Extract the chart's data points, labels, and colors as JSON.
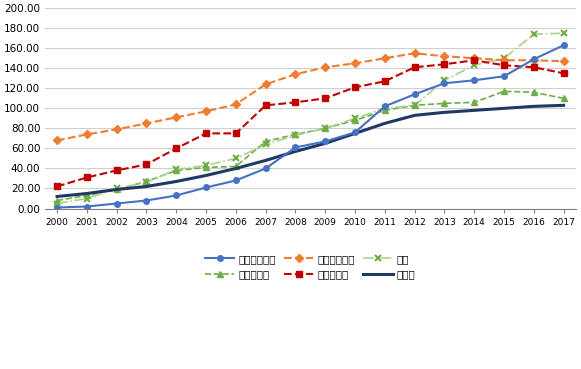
{
  "years": [
    2000,
    2001,
    2002,
    2003,
    2004,
    2005,
    2006,
    2007,
    2008,
    2009,
    2010,
    2011,
    2012,
    2013,
    2014,
    2015,
    2016,
    2017
  ],
  "indonesia": [
    1.0,
    2.0,
    5.0,
    8.0,
    13.0,
    21.0,
    28.0,
    40.0,
    61.0,
    67.0,
    76.0,
    102.0,
    114.0,
    125.0,
    128.0,
    132.0,
    149.0,
    163.0
  ],
  "malaysia": [
    22.0,
    31.0,
    38.0,
    44.0,
    60.0,
    75.0,
    75.0,
    103.0,
    106.0,
    110.0,
    121.0,
    127.0,
    141.0,
    144.0,
    148.0,
    143.0,
    141.0,
    135.0
  ],
  "philippines": [
    8.0,
    13.0,
    19.0,
    27.0,
    38.0,
    41.0,
    42.0,
    67.0,
    74.0,
    80.0,
    88.0,
    98.0,
    103.0,
    105.0,
    106.0,
    117.0,
    116.0,
    110.0
  ],
  "singapore": [
    68.0,
    74.0,
    79.0,
    85.0,
    91.0,
    97.0,
    104.0,
    124.0,
    134.0,
    141.0,
    145.0,
    150.0,
    155.0,
    152.0,
    150.0,
    148.0,
    148.0,
    147.0
  ],
  "thailand": [
    5.0,
    10.0,
    20.0,
    26.0,
    39.0,
    43.0,
    50.0,
    64.0,
    73.0,
    80.0,
    90.0,
    100.0,
    103.0,
    128.0,
    143.0,
    150.0,
    174.0,
    175.0
  ],
  "world": [
    12.0,
    15.0,
    19.0,
    22.0,
    27.0,
    33.0,
    40.0,
    48.0,
    57.0,
    65.0,
    75.0,
    85.0,
    93.0,
    96.0,
    98.0,
    100.0,
    102.0,
    103.0
  ],
  "color_indonesia": "#4472C4",
  "color_malaysia": "#C00000",
  "color_philippines": "#70AD47",
  "color_singapore": "#ED7D31",
  "color_thailand": "#70AD47",
  "color_world": "#1F3864",
  "label_indonesia": "インドネシア",
  "label_malaysia": "マレーシア",
  "label_philippines": "フィリピン",
  "label_singapore": "シンガポール",
  "label_thailand": "タイ",
  "label_world": "全世界",
  "ylim": [
    0,
    200
  ],
  "yticks": [
    0,
    20,
    40,
    60,
    80,
    100,
    120,
    140,
    160,
    180,
    200
  ],
  "xlim_left": 1999.6,
  "xlim_right": 2017.4
}
